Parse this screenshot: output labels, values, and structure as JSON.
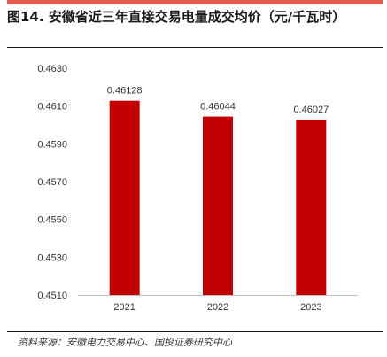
{
  "figure": {
    "title": "图14. 安徽省近三年直接交易电量成交均价（元/千瓦时）",
    "source": "资料来源：安徽电力交易中心、国投证券研究中心"
  },
  "colors": {
    "bar": "#c00000",
    "accent_bar": "#e05a4e",
    "axis": "#bfbfbf",
    "text": "#333333"
  },
  "chart_data": {
    "type": "bar",
    "title": "",
    "xlabel": "",
    "ylabel": "",
    "categories": [
      "2021",
      "2022",
      "2023"
    ],
    "values": [
      0.46128,
      0.46044,
      0.46027
    ],
    "value_labels": [
      "0.46128",
      "0.46044",
      "0.46027"
    ],
    "ylim": [
      0.451,
      0.463
    ],
    "yticks": [
      0.451,
      0.453,
      0.455,
      0.457,
      0.459,
      0.461,
      0.463
    ],
    "ytick_labels": [
      "0.4510",
      "0.4530",
      "0.4550",
      "0.4570",
      "0.4590",
      "0.4610",
      "0.4630"
    ],
    "grid": false,
    "legend": "none"
  }
}
